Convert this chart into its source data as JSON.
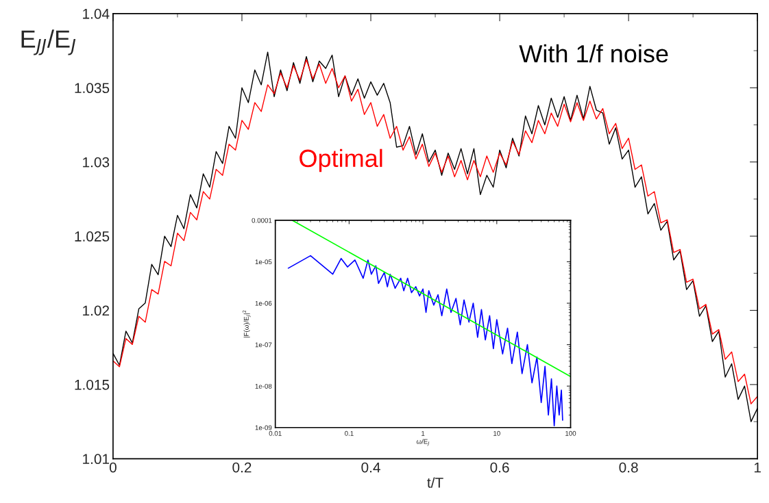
{
  "chart_data": [
    {
      "type": "line",
      "xlabel": "t/T",
      "ylabel": "E$_{JJ}$/E$_{J}$",
      "xlim": [
        0,
        1
      ],
      "ylim": [
        1.01,
        1.04
      ],
      "xticks": [
        0,
        {
          "value": 0.1,
          "label": null
        },
        0.2,
        {
          "value": 0.3,
          "label": null
        },
        0.4,
        {
          "value": 0.5,
          "label": null
        },
        0.6,
        {
          "value": 0.7,
          "label": null
        },
        0.8,
        {
          "value": 0.9,
          "label": null
        },
        1
      ],
      "yticks": [
        1.01,
        {
          "value": 1.0125,
          "label": null
        },
        1.015,
        {
          "value": 1.0175,
          "label": null
        },
        1.02,
        {
          "value": 1.0225,
          "label": null
        },
        1.025,
        {
          "value": 1.0275,
          "label": null
        },
        1.03,
        {
          "value": 1.0325,
          "label": null
        },
        1.035,
        {
          "value": 1.0375,
          "label": null
        },
        1.04
      ],
      "grid": false,
      "legend": false,
      "marker": "none",
      "line_style": "solid",
      "x": [
        0,
        0.01,
        0.02,
        0.03,
        0.04,
        0.05,
        0.06,
        0.07,
        0.08,
        0.09,
        0.1,
        0.11,
        0.12,
        0.13,
        0.14,
        0.15,
        0.16,
        0.17,
        0.18,
        0.19,
        0.2,
        0.21,
        0.22,
        0.23,
        0.24,
        0.25,
        0.26,
        0.27,
        0.28,
        0.29,
        0.3,
        0.31,
        0.32,
        0.33,
        0.34,
        0.35,
        0.36,
        0.37,
        0.38,
        0.39,
        0.4,
        0.41,
        0.42,
        0.43,
        0.44,
        0.45,
        0.46,
        0.47,
        0.48,
        0.49,
        0.5,
        0.51,
        0.52,
        0.53,
        0.54,
        0.55,
        0.56,
        0.57,
        0.58,
        0.59,
        0.6,
        0.61,
        0.62,
        0.63,
        0.64,
        0.65,
        0.66,
        0.67,
        0.68,
        0.69,
        0.7,
        0.71,
        0.72,
        0.73,
        0.74,
        0.75,
        0.76,
        0.77,
        0.78,
        0.79,
        0.8,
        0.81,
        0.82,
        0.83,
        0.84,
        0.85,
        0.86,
        0.87,
        0.88,
        0.89,
        0.9,
        0.91,
        0.92,
        0.93,
        0.94,
        0.95,
        0.96,
        0.97,
        0.98,
        0.99,
        1
      ],
      "series": [
        {
          "name": "With 1/f noise",
          "color": "#000000",
          "values": [
            1.0171,
            1.0163,
            1.0186,
            1.0178,
            1.0201,
            1.0205,
            1.0231,
            1.0224,
            1.025,
            1.0243,
            1.0264,
            1.0255,
            1.0278,
            1.0269,
            1.0292,
            1.0283,
            1.0307,
            1.0299,
            1.0324,
            1.0316,
            1.035,
            1.034,
            1.0362,
            1.0352,
            1.0374,
            1.0344,
            1.0362,
            1.0348,
            1.0367,
            1.0353,
            1.0371,
            1.0354,
            1.0368,
            1.0363,
            1.0372,
            1.0344,
            1.0358,
            1.0345,
            1.0356,
            1.0343,
            1.0354,
            1.0345,
            1.0353,
            1.034,
            1.031,
            1.0311,
            1.0324,
            1.0305,
            1.0319,
            1.03,
            1.0308,
            1.0291,
            1.0306,
            1.0295,
            1.0309,
            1.0292,
            1.0309,
            1.0278,
            1.0291,
            1.0283,
            1.0308,
            1.0296,
            1.0316,
            1.0304,
            1.0331,
            1.0319,
            1.0338,
            1.0325,
            1.0343,
            1.033,
            1.0344,
            1.0328,
            1.0345,
            1.0329,
            1.0351,
            1.0335,
            1.0333,
            1.0312,
            1.0323,
            1.0302,
            1.0308,
            1.0283,
            1.029,
            1.0265,
            1.0272,
            1.0254,
            1.026,
            1.0234,
            1.024,
            1.0214,
            1.022,
            1.0196,
            1.0203,
            1.0179,
            1.0186,
            1.0155,
            1.0164,
            1.014,
            1.0149,
            1.0125,
            1.0134
          ]
        },
        {
          "name": "Optimal",
          "color": "#ff0000",
          "values": [
            1.0166,
            1.0162,
            1.0181,
            1.0177,
            1.0196,
            1.0192,
            1.0214,
            1.0211,
            1.0233,
            1.023,
            1.0252,
            1.0247,
            1.0266,
            1.0261,
            1.028,
            1.0275,
            1.0295,
            1.0291,
            1.0312,
            1.0308,
            1.0328,
            1.0322,
            1.034,
            1.0334,
            1.0352,
            1.0346,
            1.036,
            1.035,
            1.0365,
            1.0355,
            1.0369,
            1.0356,
            1.0366,
            1.0353,
            1.0363,
            1.035,
            1.0358,
            1.0341,
            1.0349,
            1.0332,
            1.034,
            1.0324,
            1.0332,
            1.0316,
            1.0324,
            1.0308,
            1.0317,
            1.0302,
            1.0312,
            1.0297,
            1.0306,
            1.0293,
            1.0304,
            1.029,
            1.0301,
            1.0288,
            1.0301,
            1.029,
            1.0304,
            1.0293,
            1.0306,
            1.0298,
            1.0314,
            1.0305,
            1.0321,
            1.0313,
            1.0328,
            1.0319,
            1.0333,
            1.0324,
            1.0339,
            1.0327,
            1.034,
            1.0328,
            1.0341,
            1.0329,
            1.0336,
            1.0319,
            1.0326,
            1.0309,
            1.0316,
            1.0295,
            1.0298,
            1.0277,
            1.028,
            1.0259,
            1.0261,
            1.0239,
            1.0241,
            1.0219,
            1.0221,
            1.0201,
            1.0204,
            1.0184,
            1.0187,
            1.0167,
            1.0172,
            1.0152,
            1.0157,
            1.0137,
            1.0142
          ]
        }
      ]
    },
    {
      "type": "line",
      "xlabel": "ω/E$_{J}$",
      "ylabel": "|F(ω)/E$_{J}$|$^{2}$",
      "log": "xy",
      "xlim": [
        0.01,
        100
      ],
      "ylim": [
        1e-09,
        0.0001
      ],
      "xticks": [
        {
          "value": 0.01,
          "label": "0.01"
        },
        {
          "value": 0.1,
          "label": "0.1"
        },
        1,
        10,
        100
      ],
      "yticks": [
        {
          "value": 1e-09,
          "label": "1e-09"
        },
        {
          "value": 1e-08,
          "label": "1e-08"
        },
        {
          "value": 1e-07,
          "label": "1e-07"
        },
        {
          "value": 1e-06,
          "label": "1e-06"
        },
        {
          "value": 1e-05,
          "label": "1e-05"
        },
        {
          "value": 0.0001,
          "label": "0.0001"
        }
      ],
      "grid": false,
      "legend": false,
      "marker": "none",
      "line_style": "solid",
      "series": [
        {
          "color": "#0000ff",
          "x": [
            0.015,
            0.03,
            0.06,
            0.078,
            0.095,
            0.12,
            0.155,
            0.18,
            0.2,
            0.23,
            0.25,
            0.3,
            0.33,
            0.36,
            0.42,
            0.5,
            0.55,
            0.62,
            0.7,
            0.8,
            0.9,
            1.0,
            1.1,
            1.2,
            1.4,
            1.6,
            1.8,
            2.1,
            2.4,
            2.8,
            3.2,
            3.6,
            4.2,
            4.8,
            5.5,
            6.2,
            7,
            8,
            9,
            10,
            12,
            14,
            16,
            19,
            22,
            26,
            30,
            35,
            40,
            45,
            50,
            55,
            60,
            65,
            70,
            75,
            78
          ],
          "values": [
            7e-06,
            1.4e-05,
            5e-06,
            1.2e-05,
            7.5e-06,
            1.1e-05,
            4e-06,
            1.1e-05,
            5e-06,
            8e-06,
            3e-06,
            5.5e-06,
            2.5e-06,
            5e-06,
            2.3e-06,
            4e-06,
            2e-06,
            4e-06,
            1.8e-06,
            2.5e-06,
            1.5e-06,
            2.2e-06,
            6e-07,
            2e-06,
            9e-07,
            1.6e-06,
            5e-07,
            2.2e-06,
            6e-07,
            1.3e-06,
            3e-07,
            1.2e-06,
            3.5e-07,
            1e-06,
            1.5e-07,
            7e-07,
            1.3e-07,
            5e-07,
            8e-08,
            4e-07,
            6e-08,
            2.5e-07,
            3.5e-08,
            2e-07,
            2e-08,
            1e-07,
            1.2e-08,
            5e-08,
            4e-09,
            3e-08,
            2e-09,
            1.5e-08,
            1.1e-09,
            1e-08,
            2e-09,
            8e-09,
            1.5e-09
          ]
        },
        {
          "color": "#00ff00",
          "x": [
            0.017,
            100
          ],
          "values": [
            0.0001,
            1.7e-08
          ]
        }
      ]
    }
  ]
}
